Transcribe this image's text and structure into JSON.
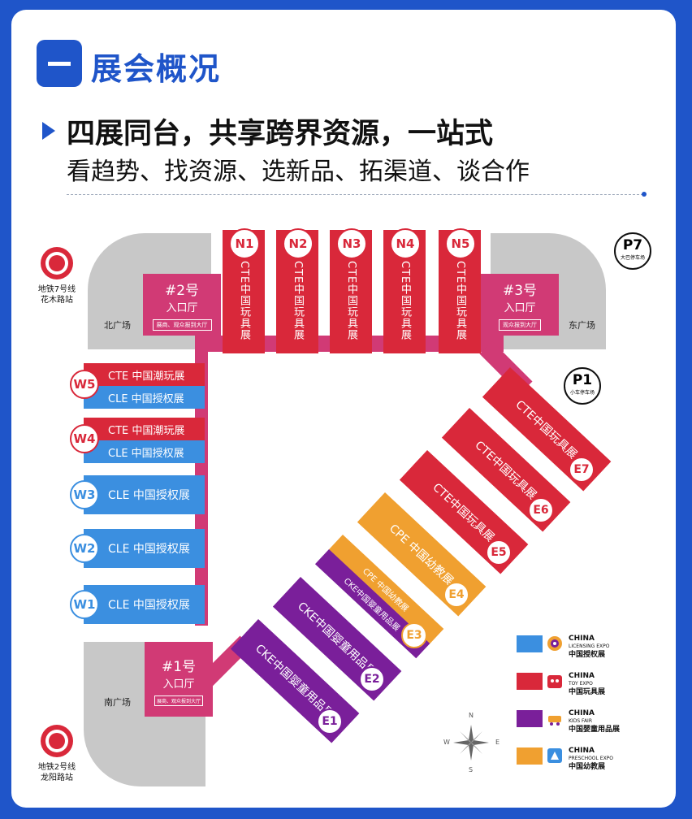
{
  "header": {
    "section_number": "一",
    "title": "展会概况",
    "headline": "四展同台，共享跨界资源，一站式",
    "subline": "看趋势、找资源、选新品、拓渠道、谈合作"
  },
  "map": {
    "areas": {
      "north_plaza": "北广场",
      "east_plaza": "东广场",
      "south_plaza": "南广场"
    },
    "lobbies": [
      {
        "name": "#2号",
        "sub": "入口厅",
        "note": "展商、观众报到大厅"
      },
      {
        "name": "#3号",
        "sub": "入口厅",
        "note": "观众报到大厅"
      },
      {
        "name": "#1号",
        "sub": "入口厅",
        "note": "展商、观众报到大厅"
      }
    ],
    "north_halls": [
      {
        "id": "N1",
        "label": "CTE中国玩具展"
      },
      {
        "id": "N2",
        "label": "CTE中国玩具展"
      },
      {
        "id": "N3",
        "label": "CTE中国玩具展"
      },
      {
        "id": "N4",
        "label": "CTE中国玩具展"
      },
      {
        "id": "N5",
        "label": "CTE中国玩具展"
      }
    ],
    "west_halls": [
      {
        "id": "W5",
        "rows": [
          "CTE 中国潮玩展",
          "CLE 中国授权展"
        ]
      },
      {
        "id": "W4",
        "rows": [
          "CTE 中国潮玩展",
          "CLE 中国授权展"
        ]
      },
      {
        "id": "W3",
        "rows": [
          "CLE 中国授权展"
        ]
      },
      {
        "id": "W2",
        "rows": [
          "CLE 中国授权展"
        ]
      },
      {
        "id": "W1",
        "rows": [
          "CLE 中国授权展"
        ]
      }
    ],
    "east_halls": [
      {
        "id": "E7",
        "label": "CTE中国玩具展"
      },
      {
        "id": "E6",
        "label": "CTE中国玩具展"
      },
      {
        "id": "E5",
        "label": "CTE中国玩具展"
      },
      {
        "id": "E4",
        "label": "CPE 中国幼教展"
      },
      {
        "id": "E3",
        "label": "CPE 中国幼教展 / CKE中国婴童用品展"
      },
      {
        "id": "E2",
        "label": "CKE中国婴童用品展"
      },
      {
        "id": "E1",
        "label": "CKE中国婴童用品展"
      }
    ],
    "parking": [
      {
        "id": "P7",
        "label": "大巴停车场"
      },
      {
        "id": "P1",
        "label": "小车停车场"
      }
    ],
    "metro": [
      {
        "line": "地铁7号线",
        "station": "花木路站"
      },
      {
        "line": "地铁2号线",
        "station": "龙阳路站"
      }
    ],
    "compass": {
      "n": "N",
      "s": "S",
      "e": "E",
      "w": "W"
    }
  },
  "legend": [
    {
      "color": "#3b8fe0",
      "title": "CHINA",
      "en": "LICENSING EXPO",
      "cn": "中国授权展",
      "icon": "licensing-logo-icon"
    },
    {
      "color": "#d9283a",
      "title": "CHINA",
      "en": "TOY EXPO",
      "cn": "中国玩具展",
      "icon": "toy-logo-icon"
    },
    {
      "color": "#7a1f9a",
      "title": "CHINA",
      "en": "KIDS FAIR",
      "cn": "中国婴童用品展",
      "icon": "kids-logo-icon"
    },
    {
      "color": "#f0a030",
      "title": "CHINA",
      "en": "PRESCHOOL EXPO",
      "cn": "中国幼教展",
      "icon": "preschool-logo-icon"
    }
  ],
  "colors": {
    "brand_blue": "#1f55c9",
    "licensing_blue": "#3b8fe0",
    "toy_red": "#d9283a",
    "kids_purple": "#7a1f9a",
    "preschool_orange": "#f0a030",
    "lobby_pink": "#d13a75"
  }
}
